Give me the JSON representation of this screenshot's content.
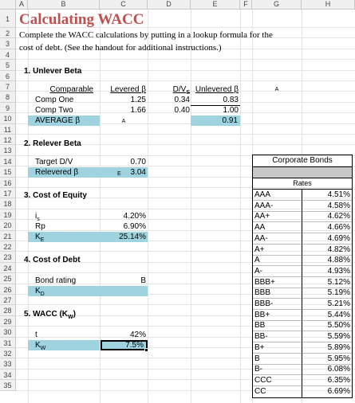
{
  "columns": [
    "A",
    "B",
    "C",
    "D",
    "E",
    "F",
    "G",
    "H"
  ],
  "rows": [
    "1",
    "2",
    "3",
    "4",
    "5",
    "6",
    "7",
    "8",
    "9",
    "10",
    "11",
    "12",
    "13",
    "14",
    "15",
    "16",
    "17",
    "18",
    "19",
    "20",
    "21",
    "22",
    "23",
    "24",
    "25",
    "26",
    "27",
    "28",
    "29",
    "30",
    "31",
    "32",
    "33",
    "34",
    "35"
  ],
  "title": "Calculating WACC",
  "instructions_line1": "Complete the WACC calculations by putting in a lookup formula for the",
  "instructions_line2": "cost of debt.  (See the handout for additional instructions.)",
  "unlever": {
    "heading": "1.  Unlever Beta",
    "col_comparable": "Comparable",
    "col_levered": "Levered β",
    "col_dv": "D/V",
    "col_dv_sub": "E",
    "col_unlevered": "Unlevered β",
    "rows": [
      {
        "name": "Comp One",
        "levered": "1.25",
        "dv": "0.34",
        "unlevered": "0.83"
      },
      {
        "name": "Comp Two",
        "levered": "1.66",
        "dv": "0.40",
        "unlevered": "1.00"
      }
    ],
    "average_label": "AVERAGE β",
    "average_value": "0.91",
    "stray_c": "A",
    "stray_g": "A"
  },
  "relever": {
    "heading": "2.  Relever Beta",
    "target_label": "Target D/V",
    "target_value": "0.70",
    "relevered_label": "Relevered β",
    "relevered_prefix": "E",
    "relevered_value": "3.04"
  },
  "equity": {
    "heading": "3.  Cost of Equity",
    "rf_label": "i",
    "rf_sub": "s",
    "rf_value": "4.20%",
    "rp_label": "Rp",
    "rp_value": "6.90%",
    "ke_label": "K",
    "ke_sub": "E",
    "ke_value": "25.14%"
  },
  "debt": {
    "heading": "4.  Cost of Debt",
    "rating_label": "Bond rating",
    "rating_value": "B",
    "kd_label": "K",
    "kd_sub": "D"
  },
  "wacc": {
    "heading": "5.  WACC (K",
    "heading_sub": "W",
    "heading_end": ")",
    "t_label": "t",
    "t_value": "42%",
    "kw_label": "K",
    "kw_sub": "W",
    "kw_value": "7.5%"
  },
  "bonds": {
    "title": "Corporate Bonds",
    "rates_label": "Rates",
    "rows": [
      {
        "rating": "AAA",
        "rate": "4.51%"
      },
      {
        "rating": "AAA-",
        "rate": "4.58%"
      },
      {
        "rating": "AA+",
        "rate": "4.62%"
      },
      {
        "rating": "AA",
        "rate": "4.66%"
      },
      {
        "rating": "AA-",
        "rate": "4.69%"
      },
      {
        "rating": "A+",
        "rate": "4.82%"
      },
      {
        "rating": "A",
        "rate": "4.88%"
      },
      {
        "rating": "A-",
        "rate": "4.93%"
      },
      {
        "rating": "BBB+",
        "rate": "5.12%"
      },
      {
        "rating": "BBB",
        "rate": "5.19%"
      },
      {
        "rating": "BBB-",
        "rate": "5.21%"
      },
      {
        "rating": "BB+",
        "rate": "5.44%"
      },
      {
        "rating": "BB",
        "rate": "5.50%"
      },
      {
        "rating": "BB-",
        "rate": "5.59%"
      },
      {
        "rating": "B+",
        "rate": "5.89%"
      },
      {
        "rating": "B",
        "rate": "5.95%"
      },
      {
        "rating": "B-",
        "rate": "6.08%"
      },
      {
        "rating": "CCC",
        "rate": "6.35%"
      },
      {
        "rating": "CC",
        "rate": "6.69%"
      }
    ]
  }
}
